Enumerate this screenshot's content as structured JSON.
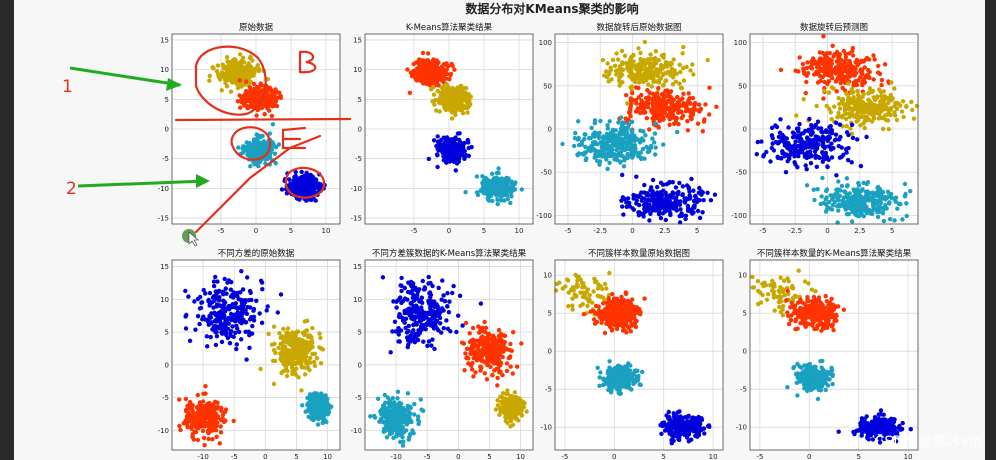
{
  "figure": {
    "title": "数据分布对KMeans聚类的影响",
    "watermark": "CSDN @黑冰vip"
  },
  "annotations": {
    "label_1": "1",
    "label_2": "2",
    "handwritten_1": "β",
    "handwritten_2": "ε",
    "ink_color": "#e3301c",
    "arrow_color": "#22aa22"
  },
  "chart_data": [
    {
      "type": "scatter",
      "title": "原始数据",
      "xlim": [
        -12,
        12
      ],
      "ylim": [
        -16,
        16
      ],
      "xticks": [
        -5,
        0,
        5,
        10
      ],
      "yticks": [
        -15,
        -10,
        -5,
        0,
        5,
        10,
        15
      ],
      "grid": true,
      "clusters": [
        {
          "color": "#c8a800",
          "center": [
            -2.5,
            9.5
          ],
          "spread": [
            1.3,
            1.1
          ]
        },
        {
          "color": "#ff3300",
          "center": [
            0.5,
            5.0
          ],
          "spread": [
            1.2,
            1.0
          ]
        },
        {
          "color": "#1aa0c0",
          "center": [
            0.5,
            -3.5
          ],
          "spread": [
            1.0,
            1.0
          ]
        },
        {
          "color": "#0000dd",
          "center": [
            6.8,
            -9.8
          ],
          "spread": [
            1.1,
            1.0
          ]
        }
      ]
    },
    {
      "type": "scatter",
      "title": "K-Means算法聚类结果",
      "xlim": [
        -12,
        12
      ],
      "ylim": [
        -16,
        16
      ],
      "xticks": [
        -5,
        0,
        5,
        10
      ],
      "yticks": [
        -15,
        -10,
        -5,
        0,
        5,
        10,
        15
      ],
      "grid": true,
      "clusters": [
        {
          "color": "#ff3300",
          "center": [
            -2.5,
            9.5
          ],
          "spread": [
            1.2,
            1.0
          ]
        },
        {
          "color": "#c8a800",
          "center": [
            0.5,
            5.0
          ],
          "spread": [
            1.2,
            1.0
          ]
        },
        {
          "color": "#0000dd",
          "center": [
            0.5,
            -3.5
          ],
          "spread": [
            1.0,
            1.0
          ]
        },
        {
          "color": "#1aa0c0",
          "center": [
            6.8,
            -9.8
          ],
          "spread": [
            1.1,
            1.0
          ]
        }
      ]
    },
    {
      "type": "scatter",
      "title": "数据旋转后原始数据图",
      "xlim": [
        -6,
        7
      ],
      "ylim": [
        -110,
        110
      ],
      "xticks": [
        -5.0,
        -2.5,
        0.0,
        2.5,
        5.0
      ],
      "yticks": [
        -100,
        -50,
        0,
        50,
        100
      ],
      "grid": true,
      "clusters": [
        {
          "color": "#c8a800",
          "center": [
            1.0,
            68
          ],
          "spread": [
            1.5,
            11
          ]
        },
        {
          "color": "#ff3300",
          "center": [
            2.5,
            25
          ],
          "spread": [
            1.5,
            10
          ]
        },
        {
          "color": "#1aa0c0",
          "center": [
            -1.5,
            -18
          ],
          "spread": [
            1.5,
            12
          ]
        },
        {
          "color": "#0000dd",
          "center": [
            2.5,
            -85
          ],
          "spread": [
            1.4,
            10
          ]
        }
      ]
    },
    {
      "type": "scatter",
      "title": "数据旋转后预测图",
      "xlim": [
        -6,
        7
      ],
      "ylim": [
        -110,
        110
      ],
      "xticks": [
        -5.0,
        -2.5,
        0.0,
        2.5,
        5.0
      ],
      "yticks": [
        -100,
        -50,
        0,
        50,
        100
      ],
      "grid": true,
      "clusters": [
        {
          "color": "#ff3300",
          "center": [
            1.0,
            68
          ],
          "spread": [
            1.5,
            11
          ]
        },
        {
          "color": "#c8a800",
          "center": [
            3.0,
            25
          ],
          "spread": [
            1.5,
            10
          ]
        },
        {
          "color": "#0000dd",
          "center": [
            -1.5,
            -18
          ],
          "spread": [
            1.5,
            12
          ]
        },
        {
          "color": "#1aa0c0",
          "center": [
            2.5,
            -85
          ],
          "spread": [
            1.4,
            10
          ]
        }
      ]
    },
    {
      "type": "scatter",
      "title": "不同方差的原始数据",
      "xlim": [
        -15,
        12
      ],
      "ylim": [
        -13,
        16
      ],
      "xticks": [
        -10,
        -5,
        0,
        5,
        10
      ],
      "yticks": [
        -10,
        -5,
        0,
        5,
        10,
        15
      ],
      "grid": true,
      "clusters": [
        {
          "color": "#0000dd",
          "center": [
            -6,
            8
          ],
          "spread": [
            2.4,
            2.4
          ]
        },
        {
          "color": "#c8a800",
          "center": [
            5,
            2
          ],
          "spread": [
            1.7,
            1.7
          ]
        },
        {
          "color": "#ff3300",
          "center": [
            -10,
            -8
          ],
          "spread": [
            1.5,
            1.5
          ]
        },
        {
          "color": "#1aa0c0",
          "center": [
            8.5,
            -6.5
          ],
          "spread": [
            0.9,
            0.9
          ]
        }
      ]
    },
    {
      "type": "scatter",
      "title": "不同方差簇数据的K-Means算法聚类结果",
      "xlim": [
        -15,
        12
      ],
      "ylim": [
        -13,
        16
      ],
      "xticks": [
        -10,
        -5,
        0,
        5,
        10
      ],
      "yticks": [
        -10,
        -5,
        0,
        5,
        10,
        15
      ],
      "grid": true,
      "clusters": [
        {
          "color": "#0000dd",
          "center": [
            -6,
            8
          ],
          "spread": [
            2.4,
            2.4
          ]
        },
        {
          "color": "#ff3300",
          "center": [
            5,
            2
          ],
          "spread": [
            1.7,
            1.7
          ]
        },
        {
          "color": "#1aa0c0",
          "center": [
            -10,
            -8
          ],
          "spread": [
            1.5,
            1.5
          ]
        },
        {
          "color": "#c8a800",
          "center": [
            8.5,
            -6.5
          ],
          "spread": [
            0.9,
            0.9
          ]
        }
      ]
    },
    {
      "type": "scatter",
      "title": "不同簇样本数量原始数据图",
      "xlim": [
        -6,
        11
      ],
      "ylim": [
        -13,
        12
      ],
      "xticks": [
        -5,
        0,
        5,
        10
      ],
      "yticks": [
        -10,
        -5,
        0,
        5,
        10
      ],
      "grid": true,
      "clusters": [
        {
          "color": "#c8a800",
          "center": [
            -2.5,
            7.5
          ],
          "spread": [
            1.2,
            1.2
          ],
          "trail": true
        },
        {
          "color": "#ff3300",
          "center": [
            0.5,
            5.0
          ],
          "spread": [
            1.1,
            1.0
          ]
        },
        {
          "color": "#1aa0c0",
          "center": [
            0.5,
            -3.5
          ],
          "spread": [
            0.8,
            0.8
          ]
        },
        {
          "color": "#0000dd",
          "center": [
            7.0,
            -10.0
          ],
          "spread": [
            1.0,
            0.7
          ]
        }
      ]
    },
    {
      "type": "scatter",
      "title": "不同簇样本数量的K-Means算法聚类结果",
      "xlim": [
        -6,
        11
      ],
      "ylim": [
        -13,
        12
      ],
      "xticks": [
        -5,
        0,
        5,
        10
      ],
      "yticks": [
        -10,
        -5,
        0,
        5,
        10
      ],
      "grid": true,
      "clusters": [
        {
          "color": "#c8a800",
          "center": [
            -2.5,
            7.5
          ],
          "spread": [
            1.2,
            1.2
          ],
          "trail": true
        },
        {
          "color": "#ff3300",
          "center": [
            0.5,
            5.0
          ],
          "spread": [
            1.1,
            1.0
          ]
        },
        {
          "color": "#1aa0c0",
          "center": [
            0.5,
            -3.5
          ],
          "spread": [
            0.8,
            0.8
          ]
        },
        {
          "color": "#0000dd",
          "center": [
            7.0,
            -10.0
          ],
          "spread": [
            1.0,
            0.7
          ]
        }
      ]
    }
  ]
}
